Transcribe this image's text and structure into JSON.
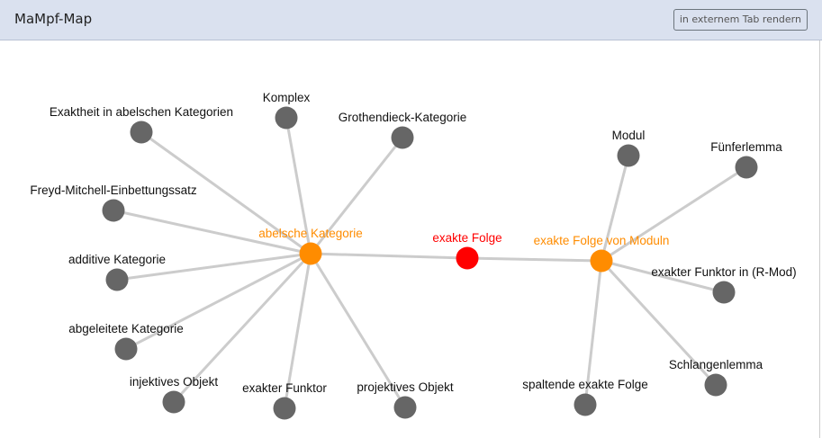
{
  "header": {
    "title": "MaMpf-Map",
    "render_button": "in externem Tab rendern"
  },
  "colors": {
    "center": "#ff0000",
    "related": "#ff8c00",
    "default": "#666666",
    "edge": "#cccccc",
    "header_bg": "#dae1ef"
  },
  "graph": {
    "nodes": [
      {
        "label": "abelsche Kategorie",
        "kind": "related"
      },
      {
        "label": "exakte Folge",
        "kind": "center"
      },
      {
        "label": "exakte Folge von Moduln",
        "kind": "related"
      },
      {
        "label": "Exaktheit in abelschen Kategorien",
        "kind": "default"
      },
      {
        "label": "Komplex",
        "kind": "default"
      },
      {
        "label": "Grothendieck-Kategorie",
        "kind": "default"
      },
      {
        "label": "Freyd-Mitchell-Einbettungssatz",
        "kind": "default"
      },
      {
        "label": "additive Kategorie",
        "kind": "default"
      },
      {
        "label": "abgeleitete Kategorie",
        "kind": "default"
      },
      {
        "label": "injektives Objekt",
        "kind": "default"
      },
      {
        "label": "exakter Funktor",
        "kind": "default"
      },
      {
        "label": "projektives Objekt",
        "kind": "default"
      },
      {
        "label": "Modul",
        "kind": "default"
      },
      {
        "label": "Fünferlemma",
        "kind": "default"
      },
      {
        "label": "exakter Funktor in (R-Mod)",
        "kind": "default"
      },
      {
        "label": "Schlangenlemma",
        "kind": "default"
      },
      {
        "label": "spaltende exakte Folge",
        "kind": "default"
      }
    ],
    "edges": [
      [
        "abelsche Kategorie",
        "exakte Folge"
      ],
      [
        "exakte Folge",
        "exakte Folge von Moduln"
      ],
      [
        "abelsche Kategorie",
        "Exaktheit in abelschen Kategorien"
      ],
      [
        "abelsche Kategorie",
        "Komplex"
      ],
      [
        "abelsche Kategorie",
        "Grothendieck-Kategorie"
      ],
      [
        "abelsche Kategorie",
        "Freyd-Mitchell-Einbettungssatz"
      ],
      [
        "abelsche Kategorie",
        "additive Kategorie"
      ],
      [
        "abelsche Kategorie",
        "abgeleitete Kategorie"
      ],
      [
        "abelsche Kategorie",
        "injektives Objekt"
      ],
      [
        "abelsche Kategorie",
        "exakter Funktor"
      ],
      [
        "abelsche Kategorie",
        "projektives Objekt"
      ],
      [
        "exakte Folge von Moduln",
        "Modul"
      ],
      [
        "exakte Folge von Moduln",
        "Fünferlemma"
      ],
      [
        "exakte Folge von Moduln",
        "exakter Funktor in (R-Mod)"
      ],
      [
        "exakte Folge von Moduln",
        "Schlangenlemma"
      ],
      [
        "exakte Folge von Moduln",
        "spaltende exakte Folge"
      ]
    ]
  }
}
